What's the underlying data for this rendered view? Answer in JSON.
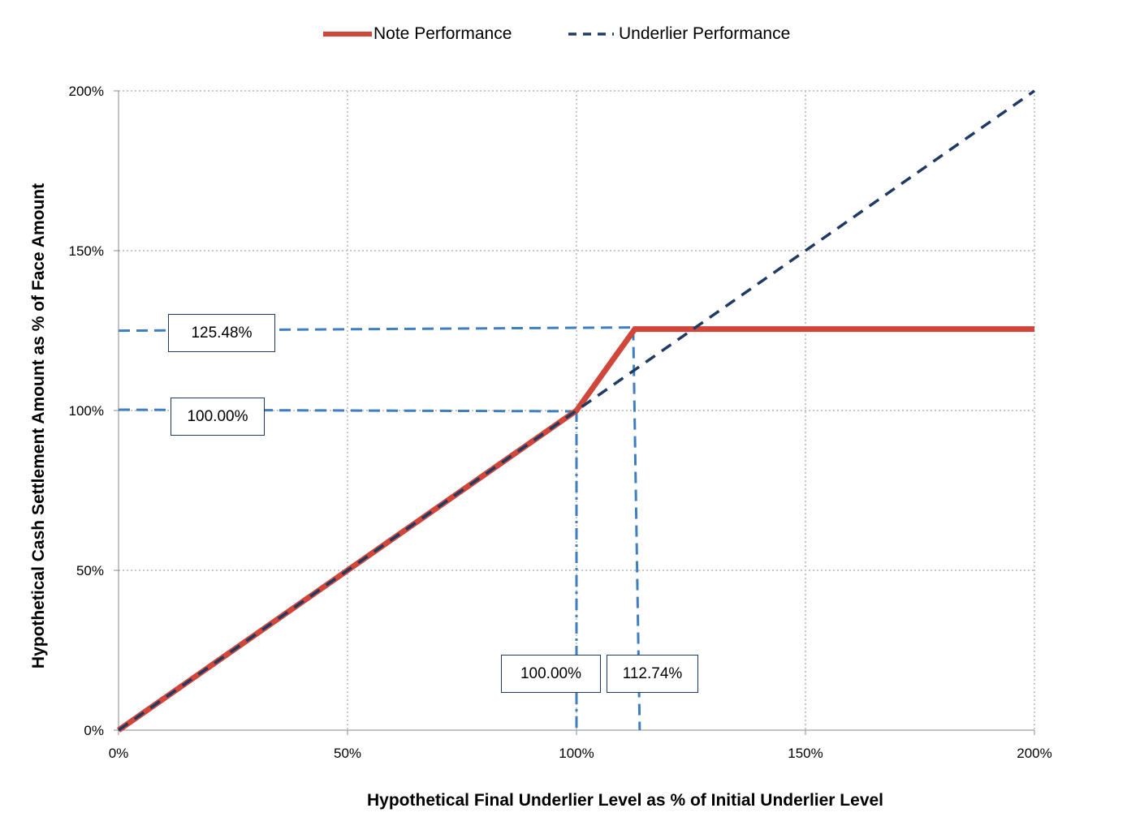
{
  "chart_data": {
    "type": "line",
    "title": "",
    "xlabel": "Hypothetical Final Underlier Level as % of Initial Underlier Level",
    "ylabel": "Hypothetical Cash Settlement Amount as % of Face Amount",
    "xlim": [
      0,
      200
    ],
    "ylim": [
      0,
      200
    ],
    "x_ticks": [
      "0%",
      "50%",
      "100%",
      "150%",
      "200%"
    ],
    "y_ticks": [
      "0%",
      "50%",
      "100%",
      "150%",
      "200%"
    ],
    "grid": true,
    "legend_position": "top",
    "series": [
      {
        "name": "Note Performance",
        "color": "#d0463b",
        "style": "solid",
        "x": [
          0,
          100,
          112.74,
          200
        ],
        "y": [
          0,
          100,
          125.48,
          125.48
        ]
      },
      {
        "name": "Underlier Performance",
        "color": "#1f3b63",
        "style": "dashed",
        "x": [
          0,
          200
        ],
        "y": [
          0,
          200
        ]
      }
    ],
    "annotations": [
      {
        "label": "125.48%",
        "axis": "y",
        "value": 125.48
      },
      {
        "label": "100.00%",
        "axis": "y",
        "value": 100
      },
      {
        "label": "100.00%",
        "axis": "x",
        "value": 100
      },
      {
        "label": "112.74%",
        "axis": "x",
        "value": 112.74
      }
    ],
    "reference_line_color": "#3f7fbf"
  }
}
